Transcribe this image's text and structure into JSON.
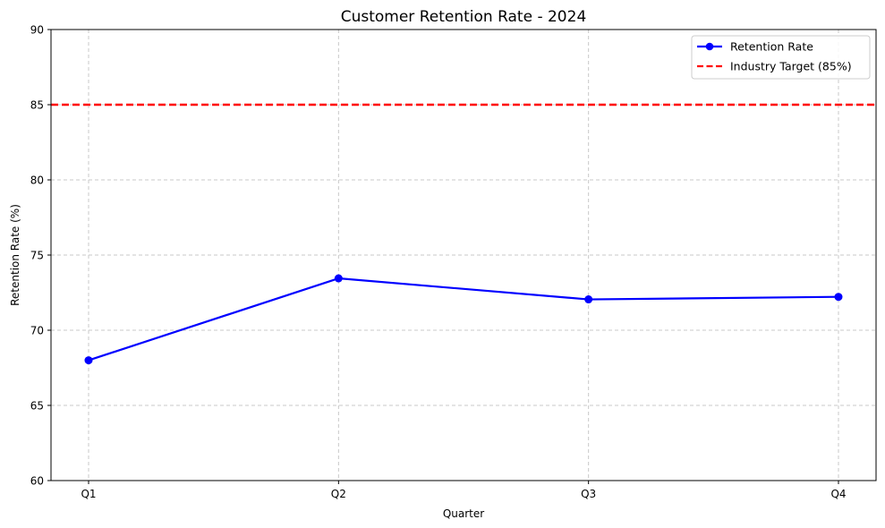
{
  "chart_data": {
    "type": "line",
    "title": "Customer Retention Rate - 2024",
    "xlabel": "Quarter",
    "ylabel": "Retention Rate (%)",
    "categories": [
      "Q1",
      "Q2",
      "Q3",
      "Q4"
    ],
    "series": [
      {
        "name": "Retention Rate",
        "values": [
          68.0,
          73.45,
          72.05,
          72.22
        ],
        "color": "#0000ff",
        "marker": "circle"
      }
    ],
    "reference_lines": [
      {
        "name": "Industry Target (85%)",
        "y": 85,
        "color": "#ff0000",
        "style": "dashed"
      }
    ],
    "ylim": [
      60,
      90
    ],
    "yticks": [
      60,
      65,
      70,
      75,
      80,
      85,
      90
    ],
    "grid": true,
    "legend_position": "top-right"
  }
}
